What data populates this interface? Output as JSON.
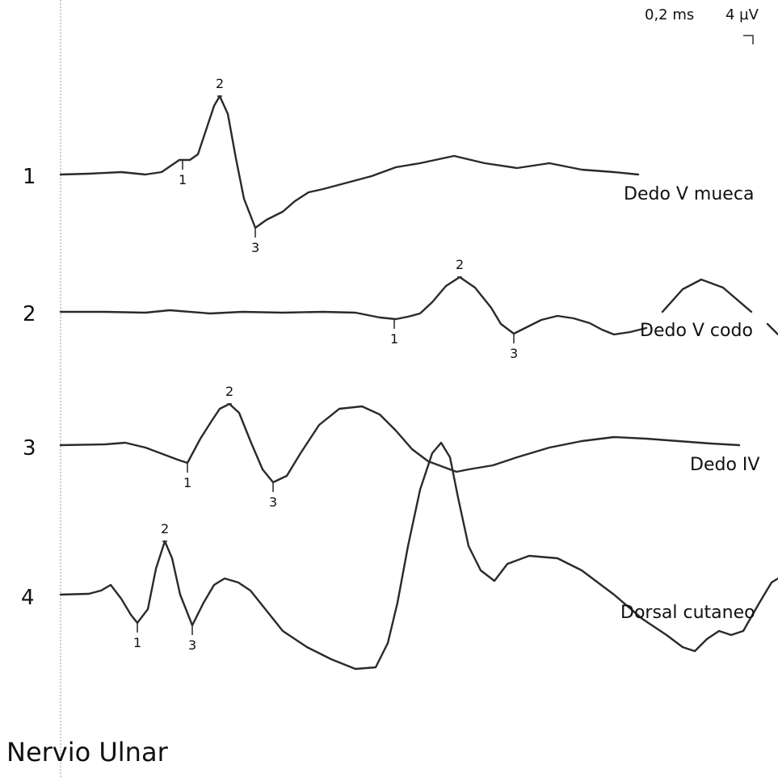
{
  "title": "Nervio Ulnar",
  "chart_data": {
    "type": "line",
    "scale": {
      "time": "0,2 ms",
      "amplitude": "4 µV"
    },
    "series": [
      {
        "row": "1",
        "name": "Dedo V mueca",
        "points": [
          [
            75,
            0
          ],
          [
            110,
            -1
          ],
          [
            150,
            -3
          ],
          [
            180,
            0
          ],
          [
            200,
            -3
          ],
          [
            222,
            -18
          ],
          [
            235,
            -18
          ],
          [
            245,
            -25
          ],
          [
            255,
            -55
          ],
          [
            265,
            -85
          ],
          [
            272,
            -97
          ],
          [
            282,
            -75
          ],
          [
            292,
            -20
          ],
          [
            302,
            30
          ],
          [
            316,
            66
          ],
          [
            330,
            56
          ],
          [
            350,
            46
          ],
          [
            365,
            33
          ],
          [
            382,
            22
          ],
          [
            400,
            18
          ],
          [
            430,
            10
          ],
          [
            460,
            2
          ],
          [
            490,
            -9
          ],
          [
            520,
            -14
          ],
          [
            562,
            -23
          ],
          [
            600,
            -14
          ],
          [
            640,
            -8
          ],
          [
            680,
            -14
          ],
          [
            720,
            -6
          ],
          [
            760,
            -3
          ],
          [
            790,
            0
          ]
        ],
        "markers": [
          {
            "label": "1",
            "x": 226,
            "y": -18,
            "side": "below"
          },
          {
            "label": "2",
            "x": 272,
            "y": -97,
            "side": "above"
          },
          {
            "label": "3",
            "x": 316,
            "y": 66,
            "side": "below"
          }
        ]
      },
      {
        "row": "2",
        "name": "Dedo V codo",
        "points": [
          [
            75,
            0
          ],
          [
            130,
            0
          ],
          [
            180,
            1
          ],
          [
            210,
            -2
          ],
          [
            260,
            2
          ],
          [
            300,
            0
          ],
          [
            350,
            1
          ],
          [
            400,
            0
          ],
          [
            440,
            1
          ],
          [
            470,
            7
          ],
          [
            490,
            9
          ],
          [
            505,
            6
          ],
          [
            520,
            2
          ],
          [
            535,
            -12
          ],
          [
            552,
            -32
          ],
          [
            569,
            -43
          ],
          [
            588,
            -30
          ],
          [
            608,
            -5
          ],
          [
            620,
            15
          ],
          [
            636,
            27
          ],
          [
            650,
            20
          ],
          [
            670,
            10
          ],
          [
            690,
            5
          ],
          [
            710,
            8
          ],
          [
            730,
            14
          ],
          [
            745,
            22
          ],
          [
            760,
            28
          ],
          [
            780,
            25
          ],
          [
            800,
            20
          ]
        ],
        "markers": [
          {
            "label": "1",
            "x": 488,
            "y": 9,
            "side": "below"
          },
          {
            "label": "2",
            "x": 569,
            "y": -43,
            "side": "above"
          },
          {
            "label": "3",
            "x": 636,
            "y": 27,
            "side": "below"
          }
        ],
        "extra": [
          [
            820,
            0
          ],
          [
            845,
            -28
          ],
          [
            868,
            -40
          ],
          [
            895,
            -30
          ],
          [
            930,
            0
          ]
        ],
        "tail": [
          [
            950,
            15
          ],
          [
            963,
            28
          ]
        ]
      },
      {
        "row": "3",
        "name": "Dedo IV",
        "points": [
          [
            75,
            0
          ],
          [
            130,
            -1
          ],
          [
            155,
            -3
          ],
          [
            180,
            3
          ],
          [
            220,
            18
          ],
          [
            232,
            22
          ],
          [
            248,
            -8
          ],
          [
            262,
            -30
          ],
          [
            272,
            -45
          ],
          [
            284,
            -51
          ],
          [
            296,
            -40
          ],
          [
            310,
            -5
          ],
          [
            325,
            30
          ],
          [
            338,
            46
          ],
          [
            355,
            38
          ],
          [
            372,
            10
          ],
          [
            395,
            -25
          ],
          [
            420,
            -45
          ],
          [
            448,
            -48
          ],
          [
            470,
            -38
          ],
          [
            490,
            -18
          ],
          [
            510,
            5
          ],
          [
            530,
            20
          ],
          [
            565,
            33
          ],
          [
            580,
            30
          ],
          [
            610,
            25
          ],
          [
            640,
            15
          ],
          [
            680,
            3
          ],
          [
            720,
            -5
          ],
          [
            760,
            -10
          ],
          [
            800,
            -8
          ],
          [
            840,
            -5
          ],
          [
            880,
            -2
          ],
          [
            915,
            0
          ]
        ],
        "markers": [
          {
            "label": "1",
            "x": 232,
            "y": 22,
            "side": "below"
          },
          {
            "label": "2",
            "x": 284,
            "y": -51,
            "side": "above"
          },
          {
            "label": "3",
            "x": 338,
            "y": 46,
            "side": "below"
          }
        ]
      },
      {
        "row": "4",
        "name": "Dorsal cutaneo",
        "points": [
          [
            75,
            0
          ],
          [
            110,
            -1
          ],
          [
            125,
            -5
          ],
          [
            137,
            -12
          ],
          [
            150,
            5
          ],
          [
            162,
            25
          ],
          [
            170,
            35
          ],
          [
            183,
            18
          ],
          [
            193,
            -32
          ],
          [
            204,
            -66
          ],
          [
            213,
            -45
          ],
          [
            223,
            0
          ],
          [
            238,
            38
          ],
          [
            252,
            10
          ],
          [
            265,
            -12
          ],
          [
            278,
            -20
          ],
          [
            295,
            -15
          ],
          [
            310,
            -5
          ],
          [
            330,
            20
          ],
          [
            350,
            45
          ],
          [
            380,
            65
          ],
          [
            410,
            80
          ],
          [
            440,
            92
          ],
          [
            465,
            90
          ],
          [
            480,
            60
          ],
          [
            492,
            10
          ],
          [
            505,
            -60
          ],
          [
            520,
            -130
          ],
          [
            535,
            -175
          ],
          [
            546,
            -188
          ],
          [
            557,
            -170
          ],
          [
            567,
            -120
          ],
          [
            580,
            -60
          ],
          [
            595,
            -30
          ],
          [
            612,
            -17
          ],
          [
            628,
            -38
          ],
          [
            655,
            -48
          ],
          [
            690,
            -45
          ],
          [
            720,
            -30
          ],
          [
            760,
            0
          ],
          [
            795,
            30
          ],
          [
            825,
            50
          ],
          [
            845,
            65
          ],
          [
            860,
            70
          ],
          [
            875,
            55
          ],
          [
            890,
            45
          ],
          [
            905,
            50
          ],
          [
            920,
            45
          ],
          [
            940,
            10
          ],
          [
            955,
            -15
          ],
          [
            963,
            -20
          ]
        ],
        "markers": [
          {
            "label": "1",
            "x": 170,
            "y": 35,
            "side": "below"
          },
          {
            "label": "2",
            "x": 204,
            "y": -66,
            "side": "above"
          },
          {
            "label": "3",
            "x": 238,
            "y": 38,
            "side": "below"
          }
        ]
      }
    ]
  }
}
